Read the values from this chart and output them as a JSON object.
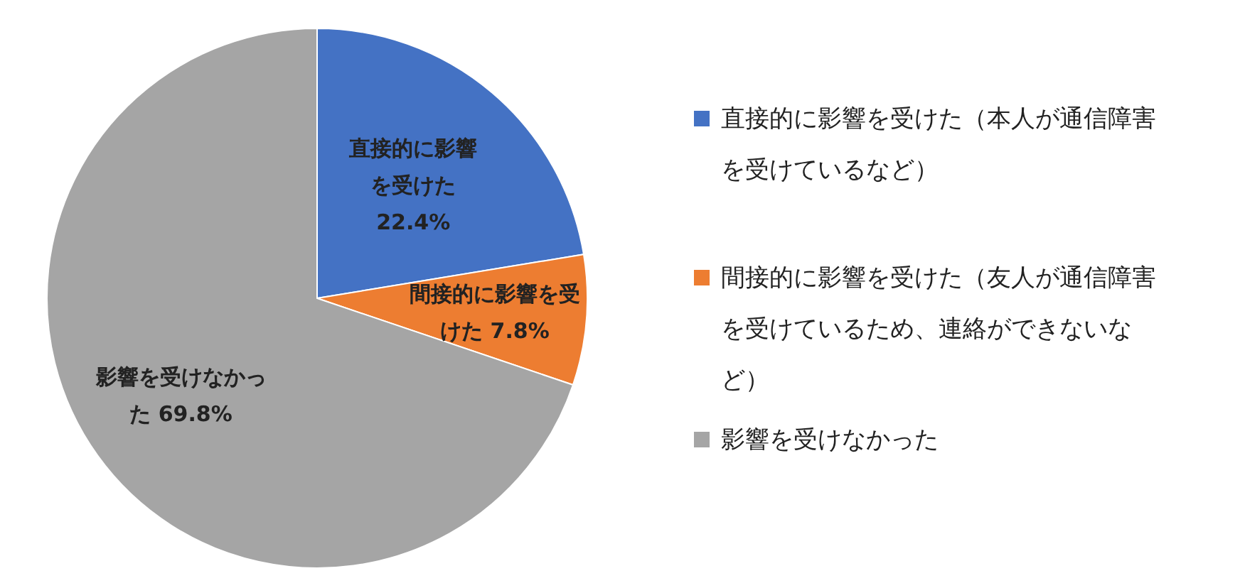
{
  "chart_data": {
    "type": "pie",
    "categories": [
      "直接的に影響を受けた（本人が通信障害を受けているなど）",
      "間接的に影響を受けた（友人が通信障害を受けているため、連絡ができないなど）",
      "影響を受けなかった"
    ],
    "values": [
      22.4,
      7.8,
      69.8
    ],
    "colors": [
      "#4472c4",
      "#ed7d31",
      "#a5a5a5"
    ],
    "value_labels": [
      "直接的に影響を受けた 22.4%",
      "間接的に影響を受けた 7.8%",
      "影響を受けなかった 69.8%"
    ],
    "legend": "right"
  }
}
